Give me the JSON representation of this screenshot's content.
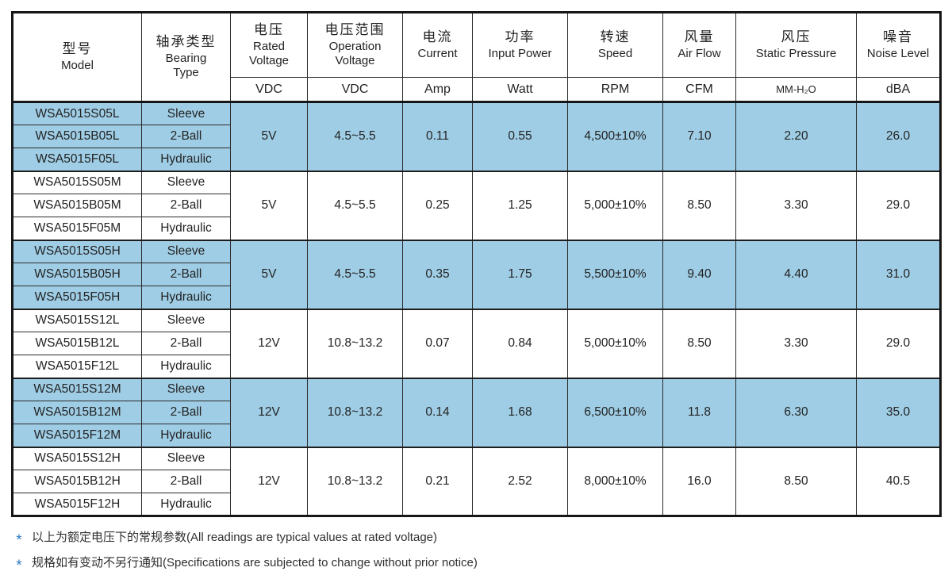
{
  "colors": {
    "highlight_row": "#9fcde5",
    "footnote_marker": "#2e7bbf",
    "border": "#161616"
  },
  "table": {
    "header": {
      "columns": [
        {
          "zh": "型号",
          "en": "Model"
        },
        {
          "zh": "轴承类型",
          "en": "Bearing Type"
        },
        {
          "zh": "电压",
          "en": "Rated Voltage",
          "unit": "VDC"
        },
        {
          "zh": "电压范围",
          "en": "Operation Voltage",
          "unit": "VDC"
        },
        {
          "zh": "电流",
          "en": "Current",
          "unit": "Amp"
        },
        {
          "zh": "功率",
          "en": "Input Power",
          "unit": "Watt"
        },
        {
          "zh": "转速",
          "en": "Speed",
          "unit": "RPM"
        },
        {
          "zh": "风量",
          "en": "Air Flow",
          "unit": "CFM"
        },
        {
          "zh": "风压",
          "en": "Static Pressure",
          "unit": "MM-H₂O"
        },
        {
          "zh": "噪音",
          "en": "Noise Level",
          "unit": "dBA"
        }
      ]
    },
    "groups": [
      {
        "highlighted": true,
        "models": [
          {
            "model": "WSA5015S05L",
            "bearing": "Sleeve"
          },
          {
            "model": "WSA5015B05L",
            "bearing": "2-Ball"
          },
          {
            "model": "WSA5015F05L",
            "bearing": "Hydraulic"
          }
        ],
        "rated_voltage": "5V",
        "operation_voltage": "4.5~5.5",
        "current": "0.11",
        "input_power": "0.55",
        "speed": "4,500±10%",
        "air_flow": "7.10",
        "static_pressure": "2.20",
        "noise": "26.0"
      },
      {
        "highlighted": false,
        "models": [
          {
            "model": "WSA5015S05M",
            "bearing": "Sleeve"
          },
          {
            "model": "WSA5015B05M",
            "bearing": "2-Ball"
          },
          {
            "model": "WSA5015F05M",
            "bearing": "Hydraulic"
          }
        ],
        "rated_voltage": "5V",
        "operation_voltage": "4.5~5.5",
        "current": "0.25",
        "input_power": "1.25",
        "speed": "5,000±10%",
        "air_flow": "8.50",
        "static_pressure": "3.30",
        "noise": "29.0"
      },
      {
        "highlighted": true,
        "models": [
          {
            "model": "WSA5015S05H",
            "bearing": "Sleeve"
          },
          {
            "model": "WSA5015B05H",
            "bearing": "2-Ball"
          },
          {
            "model": "WSA5015F05H",
            "bearing": "Hydraulic"
          }
        ],
        "rated_voltage": "5V",
        "operation_voltage": "4.5~5.5",
        "current": "0.35",
        "input_power": "1.75",
        "speed": "5,500±10%",
        "air_flow": "9.40",
        "static_pressure": "4.40",
        "noise": "31.0"
      },
      {
        "highlighted": false,
        "models": [
          {
            "model": "WSA5015S12L",
            "bearing": "Sleeve"
          },
          {
            "model": "WSA5015B12L",
            "bearing": "2-Ball"
          },
          {
            "model": "WSA5015F12L",
            "bearing": "Hydraulic"
          }
        ],
        "rated_voltage": "12V",
        "operation_voltage": "10.8~13.2",
        "current": "0.07",
        "input_power": "0.84",
        "speed": "5,000±10%",
        "air_flow": "8.50",
        "static_pressure": "3.30",
        "noise": "29.0"
      },
      {
        "highlighted": true,
        "models": [
          {
            "model": "WSA5015S12M",
            "bearing": "Sleeve"
          },
          {
            "model": "WSA5015B12M",
            "bearing": "2-Ball"
          },
          {
            "model": "WSA5015F12M",
            "bearing": "Hydraulic"
          }
        ],
        "rated_voltage": "12V",
        "operation_voltage": "10.8~13.2",
        "current": "0.14",
        "input_power": "1.68",
        "speed": "6,500±10%",
        "air_flow": "11.8",
        "static_pressure": "6.30",
        "noise": "35.0"
      },
      {
        "highlighted": false,
        "models": [
          {
            "model": "WSA5015S12H",
            "bearing": "Sleeve"
          },
          {
            "model": "WSA5015B12H",
            "bearing": "2-Ball"
          },
          {
            "model": "WSA5015F12H",
            "bearing": "Hydraulic"
          }
        ],
        "rated_voltage": "12V",
        "operation_voltage": "10.8~13.2",
        "current": "0.21",
        "input_power": "2.52",
        "speed": "8,000±10%",
        "air_flow": "16.0",
        "static_pressure": "8.50",
        "noise": "40.5"
      }
    ]
  },
  "footnotes": [
    {
      "marker": "*",
      "text": "以上为额定电压下的常规参数(All readings are typical values at rated voltage)"
    },
    {
      "marker": "*",
      "text": "规格如有变动不另行通知(Specifications are subjected to change without prior notice)"
    }
  ]
}
